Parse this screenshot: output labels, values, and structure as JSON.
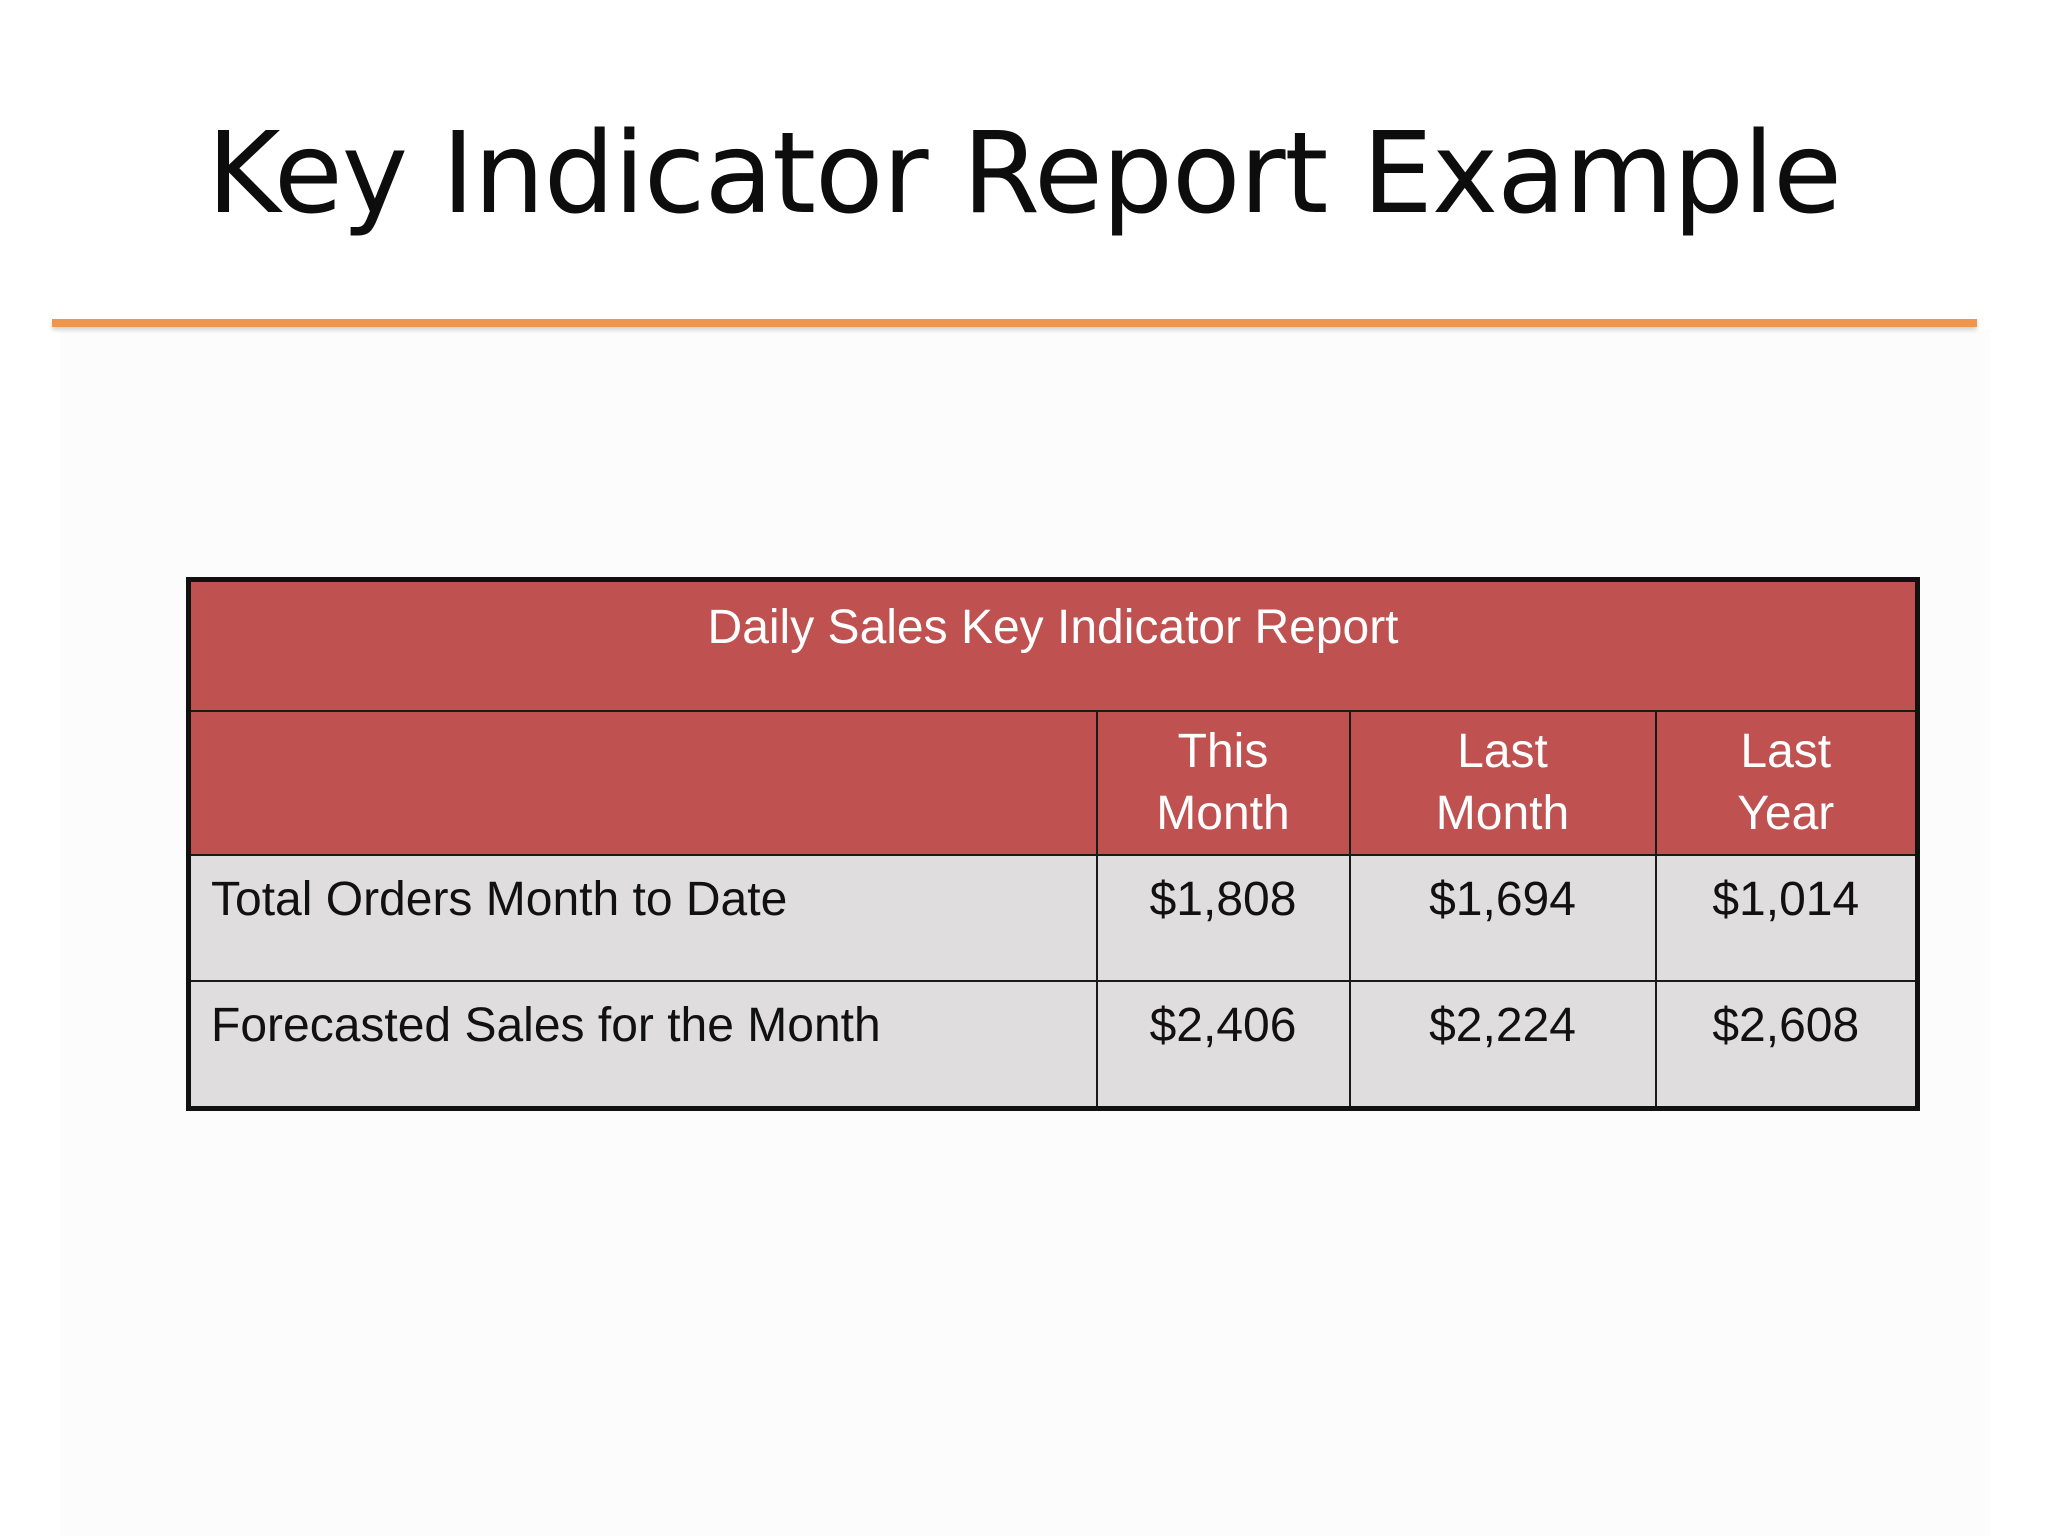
{
  "slide": {
    "title": "Key Indicator Report Example",
    "accent_color": "#f0954a"
  },
  "report_table": {
    "caption": "Daily Sales Key Indicator Report",
    "header_color": "#bf5150",
    "row_color": "#dfdddd",
    "columns": [
      {
        "line1": "This",
        "line2": "Month"
      },
      {
        "line1": "Last",
        "line2": "Month"
      },
      {
        "line1": "Last",
        "line2": "Year"
      }
    ],
    "rows": [
      {
        "label": "Total Orders Month to Date",
        "values": [
          "$1,808",
          "$1,694",
          "$1,014"
        ]
      },
      {
        "label": "Forecasted Sales for the Month",
        "values": [
          "$2,406",
          "$2,224",
          "$2,608"
        ]
      }
    ]
  }
}
